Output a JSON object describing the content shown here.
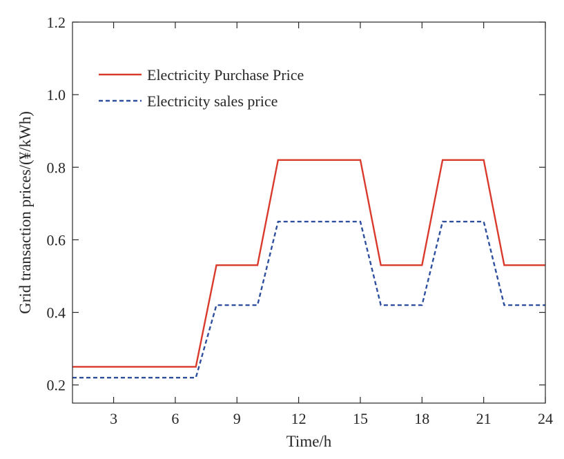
{
  "chart_data": {
    "type": "line",
    "title": "",
    "xlabel": "Time/h",
    "ylabel": "Grid transaction prices/(¥/kWh)",
    "xlim": [
      1,
      24
    ],
    "ylim": [
      0.15,
      1.2
    ],
    "xticks": [
      3,
      6,
      9,
      12,
      15,
      18,
      21,
      24
    ],
    "yticks": [
      0.2,
      0.4,
      0.6,
      0.8,
      1.0,
      1.2
    ],
    "ytick_labels": [
      "0.2",
      "0.4",
      "0.6",
      "0.8",
      "1.0",
      "1.2"
    ],
    "grid": false,
    "legend_position": "top-left",
    "x": [
      1,
      2,
      3,
      4,
      5,
      6,
      7,
      8,
      9,
      10,
      11,
      12,
      13,
      14,
      15,
      16,
      17,
      18,
      19,
      20,
      21,
      22,
      23,
      24
    ],
    "series": [
      {
        "name": "Electricity Purchase Price",
        "color": "#d93a2b",
        "style": "solid",
        "values": [
          0.25,
          0.25,
          0.25,
          0.25,
          0.25,
          0.25,
          0.25,
          0.53,
          0.53,
          0.53,
          0.82,
          0.82,
          0.82,
          0.82,
          0.82,
          0.53,
          0.53,
          0.53,
          0.82,
          0.82,
          0.82,
          0.53,
          0.53,
          0.53
        ]
      },
      {
        "name": "Electricity sales price",
        "color": "#2e4f9e",
        "style": "dashed",
        "values": [
          0.22,
          0.22,
          0.22,
          0.22,
          0.22,
          0.22,
          0.22,
          0.42,
          0.42,
          0.42,
          0.65,
          0.65,
          0.65,
          0.65,
          0.65,
          0.42,
          0.42,
          0.42,
          0.65,
          0.65,
          0.65,
          0.42,
          0.42,
          0.42
        ]
      }
    ]
  }
}
